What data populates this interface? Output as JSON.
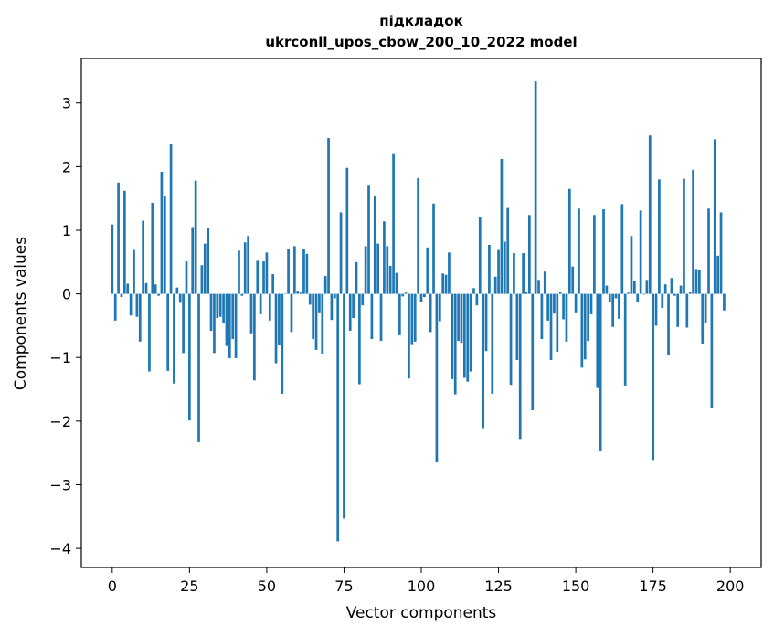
{
  "chart_data": {
    "type": "bar",
    "title_line1": "підкладок",
    "title_line2": "ukrconll_upos_cbow_200_10_2022 model",
    "xlabel": "Vector components",
    "ylabel": "Components values",
    "xlim": [
      -10,
      210
    ],
    "ylim": [
      -4.3,
      3.7
    ],
    "xticks": [
      0,
      25,
      50,
      75,
      100,
      125,
      150,
      175,
      200
    ],
    "xtick_labels": [
      "0",
      "25",
      "50",
      "75",
      "100",
      "125",
      "150",
      "175",
      "200"
    ],
    "yticks": [
      -4,
      -3,
      -2,
      -1,
      0,
      1,
      2,
      3
    ],
    "ytick_labels": [
      "−4",
      "−3",
      "−2",
      "−1",
      "0",
      "1",
      "2",
      "3"
    ],
    "color": "#1f77b4",
    "values": [
      1.09,
      -0.42,
      1.75,
      -0.05,
      1.62,
      0.16,
      -0.34,
      0.69,
      -0.36,
      -0.75,
      1.15,
      0.17,
      -1.22,
      1.43,
      0.15,
      -0.03,
      1.92,
      1.53,
      -1.21,
      2.35,
      -1.41,
      0.1,
      -0.14,
      -0.93,
      0.51,
      -1.99,
      1.05,
      1.78,
      -2.33,
      0.45,
      0.79,
      1.04,
      -0.58,
      -0.93,
      -0.38,
      -0.36,
      -0.46,
      -0.82,
      -1.01,
      -0.71,
      -1.01,
      0.68,
      -0.03,
      0.81,
      0.91,
      -0.62,
      -1.36,
      0.52,
      -0.32,
      0.51,
      0.65,
      -0.42,
      0.31,
      -1.09,
      -0.8,
      -1.57,
      0.0,
      0.71,
      -0.6,
      0.75,
      0.05,
      0.02,
      0.7,
      0.63,
      -0.17,
      -0.71,
      -0.88,
      -0.29,
      -0.94,
      0.28,
      2.45,
      -0.41,
      -0.07,
      -3.89,
      1.28,
      -3.53,
      1.98,
      -0.58,
      -0.38,
      0.5,
      -1.42,
      -0.18,
      0.75,
      1.7,
      -0.71,
      1.53,
      0.79,
      -0.74,
      1.14,
      0.75,
      0.44,
      2.21,
      0.33,
      -0.65,
      -0.04,
      0.02,
      -1.33,
      -0.79,
      -0.75,
      1.82,
      -0.12,
      -0.05,
      0.73,
      -0.6,
      1.42,
      -2.65,
      -0.43,
      0.32,
      0.3,
      0.65,
      -1.34,
      -1.58,
      -0.74,
      -0.77,
      -1.32,
      -1.38,
      -1.22,
      0.09,
      -0.18,
      1.2,
      -2.11,
      -0.9,
      0.77,
      -1.57,
      0.27,
      0.69,
      2.12,
      0.82,
      1.35,
      -1.43,
      0.64,
      -1.04,
      -2.28,
      0.64,
      0.03,
      1.24,
      -1.83,
      3.34,
      0.22,
      -0.71,
      0.35,
      -0.42,
      -1.04,
      -0.31,
      -0.91,
      0.03,
      -0.4,
      -0.75,
      1.65,
      0.43,
      -0.29,
      1.34,
      -1.16,
      -1.03,
      -0.74,
      -0.32,
      1.24,
      -1.48,
      -2.47,
      1.33,
      0.13,
      -0.12,
      -0.52,
      -0.07,
      -0.39,
      1.41,
      -1.44,
      0.02,
      0.91,
      0.2,
      -0.13,
      1.31,
      -0.01,
      0.22,
      2.49,
      -2.61,
      -0.5,
      1.8,
      -0.22,
      0.15,
      -0.96,
      0.25,
      -0.03,
      -0.52,
      0.13,
      1.81,
      -0.53,
      0.03,
      1.95,
      0.39,
      0.37,
      -0.78,
      -0.45,
      1.34,
      -1.8,
      2.43,
      0.6,
      1.28,
      -0.26
    ]
  }
}
